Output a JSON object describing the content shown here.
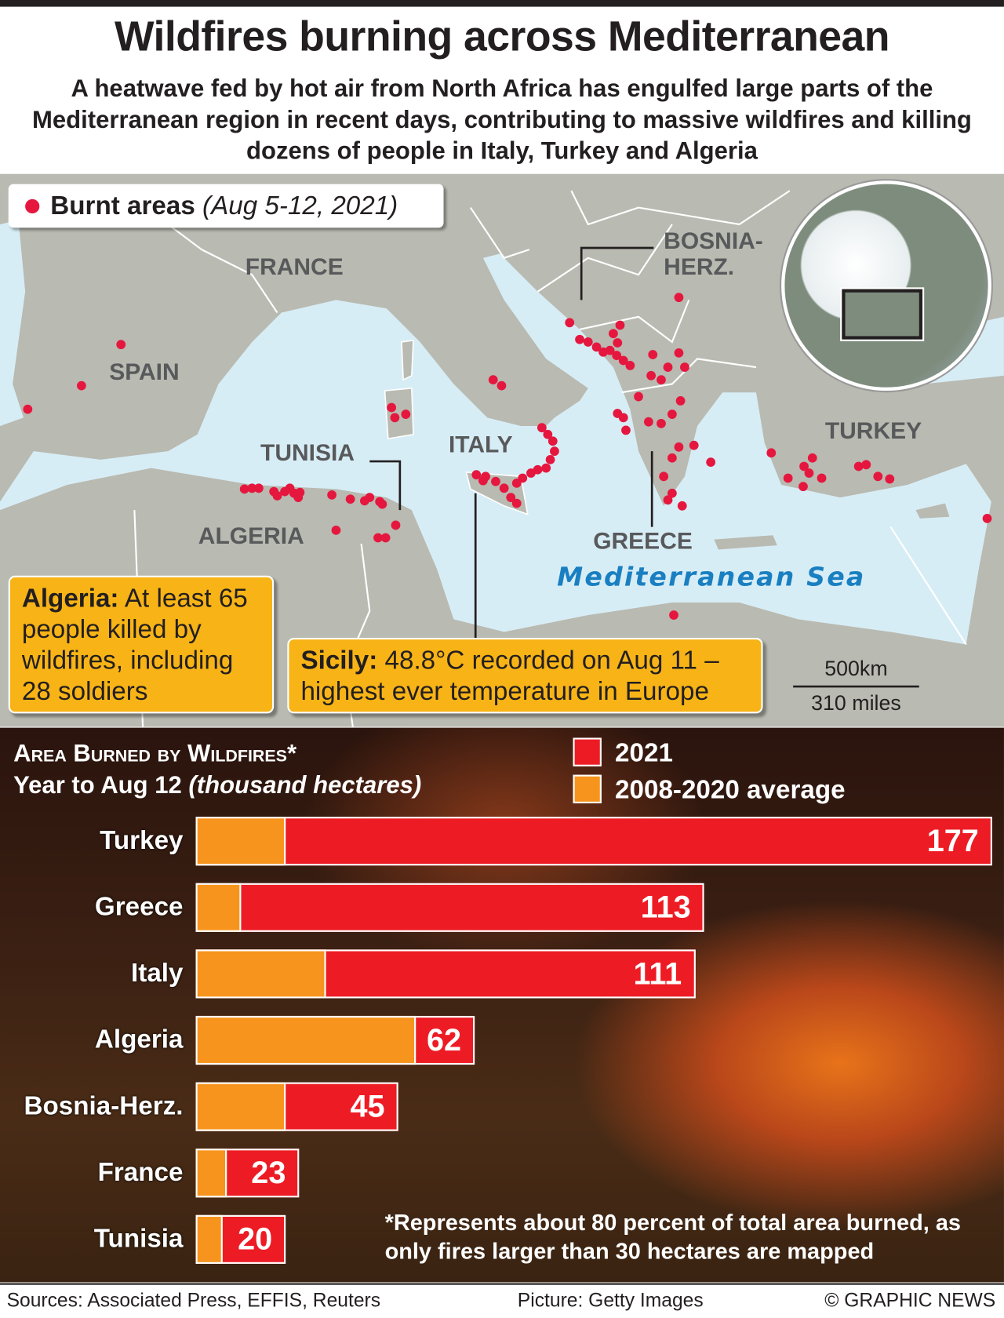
{
  "header": {
    "title": "Wildfires burning across Mediterranean",
    "subtitle": "A heatwave fed by hot air from North Africa has engulfed large parts of the Mediterranean region in recent days, contributing to massive wildfires and killing dozens of people in Italy, Turkey and Algeria"
  },
  "map": {
    "legend": {
      "label": "Burnt areas",
      "dates": "(Aug 5-12, 2021)",
      "dot_color": "#e5173f"
    },
    "labels": {
      "france": "FRANCE",
      "spain": "SPAIN",
      "tunisia": "TUNISIA",
      "algeria": "ALGERIA",
      "italy": "ITALY",
      "greece": "GREECE",
      "turkey": "TURKEY",
      "bosnia_line1": "BOSNIA-",
      "bosnia_line2": "HERZ.",
      "sea": "Mediterranean Sea"
    },
    "notes": {
      "algeria_head": "Algeria:",
      "algeria_text": "At least 65 people killed by wildfires, including 28 soldiers",
      "sicily_head": "Sicily:",
      "sicily_text": "48.8°C recorded on Aug 11 – highest ever temperature in Europe"
    },
    "scale": {
      "km": "500km",
      "miles": "310 miles"
    },
    "colors": {
      "land": "#b9bab1",
      "sea": "#d7edf6",
      "note": "#f8b416"
    }
  },
  "chart_data": {
    "type": "bar",
    "title": "Area Burned by Wildfires*",
    "subtitle": "Year to Aug 12",
    "unit": "(thousand hectares)",
    "categories": [
      "Turkey",
      "Greece",
      "Italy",
      "Algeria",
      "Bosnia-Herz.",
      "France",
      "Tunisia"
    ],
    "series": [
      {
        "name": "2021",
        "color": "#ed1c24",
        "values": [
          177,
          113,
          111,
          62,
          45,
          23,
          20
        ]
      },
      {
        "name": "2008-2020 average",
        "color": "#f7941d",
        "values": [
          20,
          10,
          29,
          49,
          20,
          7,
          6
        ]
      }
    ],
    "footnote": "*Represents about 80 percent of total area burned, as only fires larger than 30 hectares are mapped"
  },
  "footer": {
    "sources": "Sources: Associated Press, EFFIS, Reuters",
    "picture": "Picture: Getty Images",
    "credit": "© GRAPHIC NEWS"
  }
}
